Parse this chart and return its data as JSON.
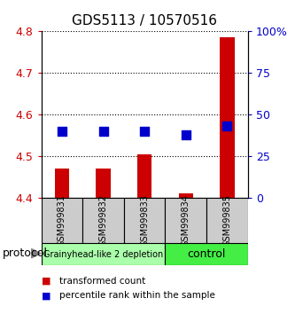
{
  "title": "GDS5113 / 10570516",
  "samples": [
    "GSM999831",
    "GSM999832",
    "GSM999833",
    "GSM999834",
    "GSM999835"
  ],
  "transformed_counts": [
    4.47,
    4.47,
    4.505,
    4.41,
    4.785
  ],
  "percentile_ranks": [
    40,
    40,
    40,
    38,
    43
  ],
  "ylim": [
    4.4,
    4.8
  ],
  "y_ticks": [
    4.4,
    4.5,
    4.6,
    4.7,
    4.8
  ],
  "right_y_ticks": [
    0,
    25,
    50,
    75,
    100
  ],
  "right_y_labels": [
    "0",
    "25",
    "50",
    "75",
    "100%"
  ],
  "groups": [
    {
      "label": "Grainyhead-like 2 depletion",
      "samples": [
        0,
        1,
        2
      ],
      "color": "#aaffaa",
      "text_size": 7
    },
    {
      "label": "control",
      "samples": [
        3,
        4
      ],
      "color": "#44ee44",
      "text_size": 9
    }
  ],
  "bar_color": "#cc0000",
  "dot_color": "#0000cc",
  "bar_width": 0.35,
  "dot_size": 50,
  "ylabel_color": "#cc0000",
  "right_ylabel_color": "#0000cc",
  "bg_label": "#cccccc",
  "grid_color": "#000000",
  "legend_red_label": "transformed count",
  "legend_blue_label": "percentile rank within the sample",
  "protocol_label": "protocol"
}
